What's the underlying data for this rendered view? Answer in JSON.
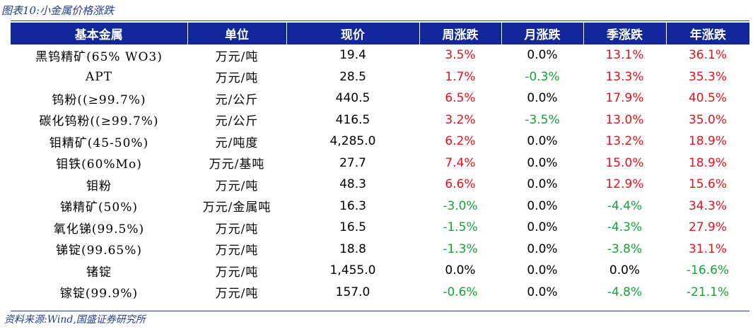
{
  "caption": "图表10:小金属价格涨跌",
  "source": "资料来源:Wind,国盛证券研究所",
  "colors": {
    "header_bg": "#13279a",
    "positive": "#e8101b",
    "negative": "#13a33a",
    "caption": "#1f3f8f"
  },
  "table": {
    "headers": [
      "基本金属",
      "单位",
      "现价",
      "周涨跌",
      "月涨跌",
      "季涨跌",
      "年涨跌"
    ],
    "rows": [
      {
        "name": "黑钨精矿(65% WO3)",
        "unit": "万元/吨",
        "price": "19.4",
        "week": "3.5%",
        "month": "0.0%",
        "quarter": "13.1%",
        "year": "36.1%"
      },
      {
        "name": "APT",
        "unit": "万元/吨",
        "price": "28.5",
        "week": "1.7%",
        "month": "-0.3%",
        "quarter": "13.3%",
        "year": "35.3%"
      },
      {
        "name": "钨粉((≥99.7%)",
        "unit": "元/公斤",
        "price": "440.5",
        "week": "6.5%",
        "month": "0.0%",
        "quarter": "17.9%",
        "year": "40.5%"
      },
      {
        "name": "碳化钨粉((≥99.7%)",
        "unit": "元/公斤",
        "price": "416.5",
        "week": "3.2%",
        "month": "-3.5%",
        "quarter": "13.0%",
        "year": "35.0%"
      },
      {
        "name": "钼精矿(45-50%)",
        "unit": "元/吨度",
        "price": "4,285.0",
        "week": "6.2%",
        "month": "0.0%",
        "quarter": "13.2%",
        "year": "18.9%"
      },
      {
        "name": "钼铁(60%Mo)",
        "unit": "万元/基吨",
        "price": "27.7",
        "week": "7.4%",
        "month": "0.0%",
        "quarter": "15.0%",
        "year": "18.9%"
      },
      {
        "name": "钼粉",
        "unit": "万元/吨",
        "price": "48.3",
        "week": "6.6%",
        "month": "0.0%",
        "quarter": "12.9%",
        "year": "15.6%"
      },
      {
        "name": "锑精矿(50%)",
        "unit": "万元/金属吨",
        "price": "16.3",
        "week": "-3.0%",
        "month": "0.0%",
        "quarter": "-4.4%",
        "year": "34.3%"
      },
      {
        "name": "氧化锑(99.5%)",
        "unit": "万元/吨",
        "price": "16.5",
        "week": "-1.5%",
        "month": "0.0%",
        "quarter": "-4.3%",
        "year": "27.9%"
      },
      {
        "name": "锑锭(99.65%)",
        "unit": "万元/吨",
        "price": "18.8",
        "week": "-1.3%",
        "month": "0.0%",
        "quarter": "-3.8%",
        "year": "31.1%"
      },
      {
        "name": "锗锭",
        "unit": "万元/吨",
        "price": "1,455.0",
        "week": "0.0%",
        "month": "0.0%",
        "quarter": "0.0%",
        "year": "-16.6%"
      },
      {
        "name": "镓锭(99.9%)",
        "unit": "万元/吨",
        "price": "157.0",
        "week": "-0.6%",
        "month": "0.0%",
        "quarter": "-4.8%",
        "year": "-21.1%"
      }
    ]
  }
}
